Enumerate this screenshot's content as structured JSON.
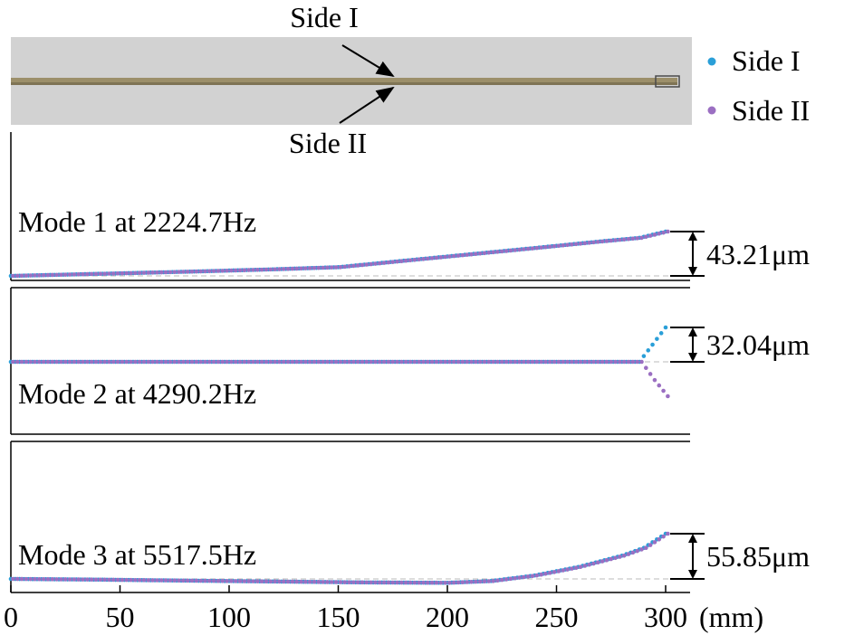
{
  "photo": {
    "callout_top": "Side I",
    "callout_bottom": "Side II"
  },
  "legend": {
    "items": [
      {
        "label": "Side I",
        "color": "#2a9fd8"
      },
      {
        "label": "Side II",
        "color": "#9b6fc2"
      }
    ]
  },
  "x_axis": {
    "ticks": [
      "0",
      "50",
      "100",
      "150",
      "200",
      "250",
      "300"
    ],
    "unit_label": "(mm)"
  },
  "chart_data": [
    {
      "type": "scatter",
      "title": "Mode 1 at 2224.7Hz",
      "amplitude_label": "43.21μm",
      "amplitude_um": 43.21,
      "xlim": [
        0,
        300
      ],
      "series": [
        {
          "name": "Side I",
          "color": "#2a9fd8",
          "x": [
            0,
            30,
            60,
            90,
            120,
            150,
            180,
            210,
            240,
            270,
            288,
            300
          ],
          "y": [
            0,
            1.5,
            3.0,
            4.6,
            6.4,
            8.5,
            14.8,
            21.0,
            27.2,
            33.6,
            37.1,
            43.21
          ]
        },
        {
          "name": "Side II",
          "color": "#9b6fc2",
          "x": [
            0,
            30,
            60,
            90,
            120,
            150,
            180,
            210,
            240,
            270,
            288,
            300
          ],
          "y": [
            0,
            1.5,
            3.0,
            4.6,
            6.4,
            8.5,
            14.8,
            21.0,
            27.2,
            33.6,
            37.1,
            43.21
          ]
        }
      ]
    },
    {
      "type": "scatter",
      "title": "Mode 2 at 4290.2Hz",
      "amplitude_label": "32.04μm",
      "amplitude_um": 32.04,
      "xlim": [
        0,
        300
      ],
      "series": [
        {
          "name": "Side I",
          "color": "#2a9fd8",
          "x": [
            0,
            50,
            100,
            150,
            200,
            250,
            288,
            294,
            300
          ],
          "y": [
            0,
            0,
            0,
            0,
            0,
            0,
            0,
            16,
            32.04
          ]
        },
        {
          "name": "Side II",
          "color": "#9b6fc2",
          "x": [
            0,
            50,
            100,
            150,
            200,
            250,
            288,
            294,
            300
          ],
          "y": [
            0,
            0,
            0,
            0,
            0,
            0,
            0,
            -17,
            -32.04
          ]
        }
      ]
    },
    {
      "type": "scatter",
      "title": "Mode 3 at 5517.5Hz",
      "amplitude_label": "55.85μm",
      "amplitude_um": 55.85,
      "xlim": [
        0,
        300
      ],
      "series": [
        {
          "name": "Side I",
          "color": "#2a9fd8",
          "x": [
            0,
            40,
            80,
            120,
            160,
            200,
            220,
            240,
            260,
            280,
            290,
            300
          ],
          "y": [
            0,
            -0.9,
            -2.1,
            -3.2,
            -4.3,
            -4.8,
            -2.6,
            4.3,
            14.8,
            28.7,
            38.3,
            55.85
          ]
        },
        {
          "name": "Side II",
          "color": "#9b6fc2",
          "x": [
            0,
            40,
            80,
            120,
            160,
            200,
            220,
            240,
            260,
            280,
            290,
            300
          ],
          "y": [
            0,
            -0.9,
            -2.1,
            -3.2,
            -4.3,
            -4.8,
            -2.6,
            4.3,
            14.8,
            28.7,
            38.3,
            55.85
          ]
        }
      ]
    }
  ]
}
